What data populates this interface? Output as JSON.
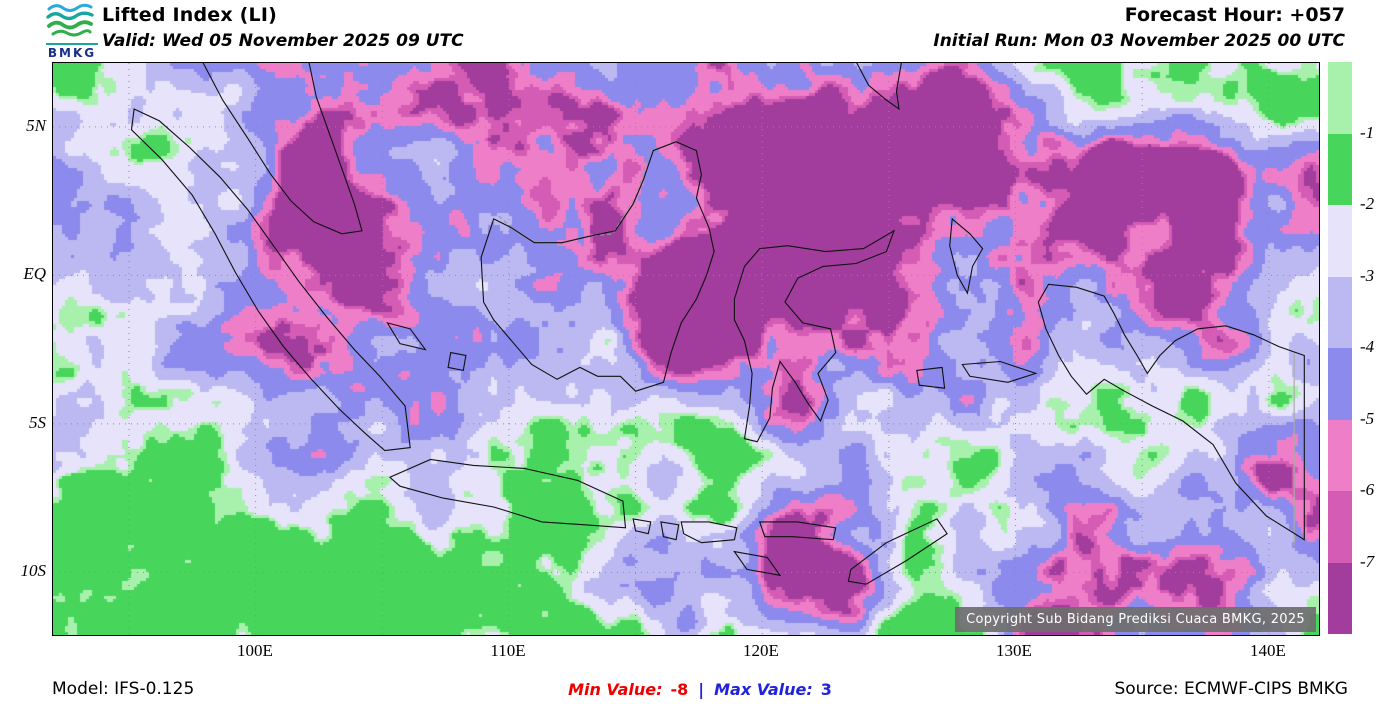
{
  "colors": {
    "min_value": "#ee0000",
    "max_value": "#2222dd",
    "accent_teal": "#17a79f"
  },
  "header": {
    "title": "Lifted Index (LI)",
    "valid": "Valid: Wed 05 November 2025 09 UTC",
    "forecast_hour": "Forecast Hour: +057",
    "initial_run": "Initial Run: Mon 03 November 2025 00 UTC",
    "logo_text": "BMKG"
  },
  "map": {
    "lat_labels": [
      "5N",
      "EQ",
      "5S",
      "10S"
    ],
    "lon_labels": [
      "100E",
      "110E",
      "120E",
      "130E",
      "140E"
    ],
    "copyright": "Copyright Sub Bidang Prediksi Cuaca BMKG, 2025"
  },
  "legend": {
    "labels": [
      "-1",
      "-2",
      "-3",
      "-4",
      "-5",
      "-6",
      "-7"
    ],
    "colors": [
      "#a8f1ad",
      "#47d55c",
      "#e6e3fa",
      "#bcb9f2",
      "#8c8aec",
      "#ef7ec9",
      "#d45cb4",
      "#a23d9d"
    ]
  },
  "footer": {
    "model": "Model: IFS-0.125",
    "min_label": "Min Value:",
    "min_value": "-8",
    "separator": "|",
    "max_label": "Max Value:",
    "max_value": "3",
    "source": "Source: ECMWF-CIPS BMKG"
  },
  "chart_data": {
    "type": "heatmap",
    "title": "Lifted Index (LI)",
    "x_ticks": [
      "100E",
      "110E",
      "120E",
      "130E",
      "140E"
    ],
    "y_ticks": [
      "5N",
      "EQ",
      "5S",
      "10S"
    ],
    "legend_levels": [
      -1,
      -2,
      -3,
      -4,
      -5,
      -6,
      -7
    ],
    "legend_colors_top_to_bottom": [
      "#a8f1ad",
      "#47d55c",
      "#e6e3fa",
      "#bcb9f2",
      "#8c8aec",
      "#ef7ec9",
      "#d45cb4",
      "#a23d9d"
    ],
    "min_value": -8,
    "max_value": 3
  }
}
